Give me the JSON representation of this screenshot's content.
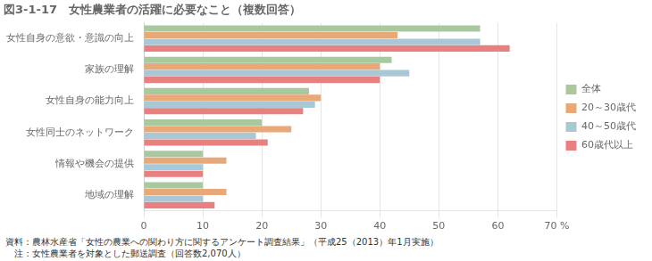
{
  "chart_data": {
    "type": "bar",
    "orientation": "horizontal",
    "title": "図3-1-17　女性農業者の活躍に必要なこと（複数回答）",
    "categories": [
      "女性自身の意欲・意識の向上",
      "家族の理解",
      "女性自身の能力向上",
      "女性同士のネットワーク",
      "情報や機会の提供",
      "地域の理解"
    ],
    "series": [
      {
        "name": "全体",
        "color": "#a8c8a0",
        "values": [
          57,
          42,
          28,
          20,
          10,
          10
        ]
      },
      {
        "name": "20～30歳代",
        "color": "#e8a878",
        "values": [
          43,
          40,
          30,
          25,
          14,
          14
        ]
      },
      {
        "name": "40～50歳代",
        "color": "#a8c8d8",
        "values": [
          57,
          45,
          29,
          19,
          10,
          10
        ]
      },
      {
        "name": "60歳代以上",
        "color": "#e88080",
        "values": [
          62,
          40,
          27,
          21,
          10,
          12
        ]
      }
    ],
    "xlim": [
      0,
      70
    ],
    "xticks": [
      0,
      10,
      20,
      30,
      40,
      50,
      60,
      {
        "value": 70,
        "label": "70 %"
      }
    ],
    "grid": true,
    "legend": "right",
    "annotations": [
      "資料：農林水産省「女性の農業への関わり方に関するアンケート調査結果」（平成25（2013）年1月実施）",
      "　注：女性農業者を対象とした郵送調査（回答数2,070人）"
    ]
  }
}
